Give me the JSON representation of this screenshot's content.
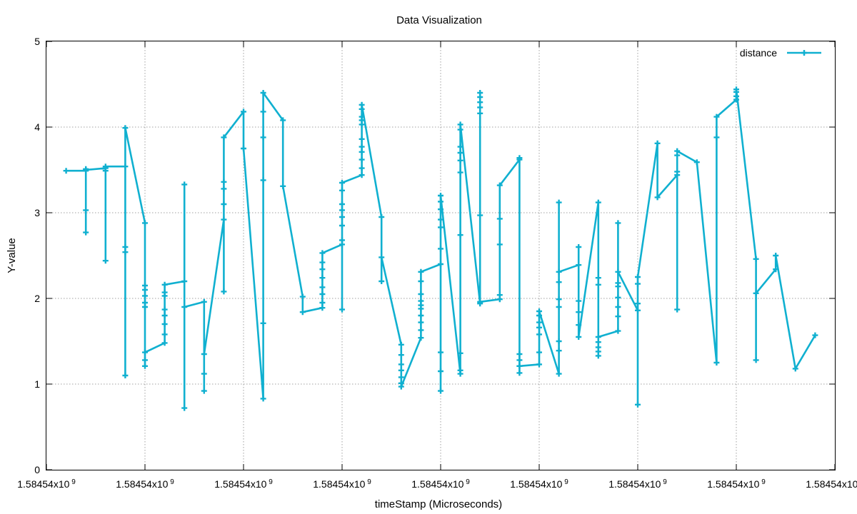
{
  "chart_data": {
    "type": "line",
    "title": "Data Visualization",
    "xlabel": "timeStamp (Microseconds)",
    "ylabel": "Y-value",
    "ylim": [
      0,
      5
    ],
    "xlim": [
      0,
      16
    ],
    "yticks": [
      "0",
      "1",
      "2",
      "3",
      "4",
      "5"
    ],
    "xtick_labels": [
      "1.58454x10 9",
      "1.58454x10 9",
      "1.58454x10 9",
      "1.58454x10 9",
      "1.58454x10 9",
      "1.58454x10 9",
      "1.58454x10 9",
      "1.58454x10 9",
      "1.58454x10 9"
    ],
    "grid": true,
    "legend_position": "top-right",
    "series": [
      {
        "name": "distance",
        "color": "#10b0d0",
        "marker": "plus",
        "points": [
          [
            0.4,
            3.49
          ],
          [
            0.8,
            3.49
          ],
          [
            0.8,
            3.51
          ],
          [
            0.8,
            3.03
          ],
          [
            0.8,
            2.77
          ],
          [
            0.8,
            3.5
          ],
          [
            1.2,
            3.52
          ],
          [
            1.2,
            3.49
          ],
          [
            1.2,
            2.44
          ],
          [
            1.2,
            3.54
          ],
          [
            1.6,
            3.54
          ],
          [
            1.6,
            2.6
          ],
          [
            1.6,
            2.54
          ],
          [
            1.6,
            1.1
          ],
          [
            1.6,
            3.99
          ],
          [
            2.0,
            2.88
          ],
          [
            2.0,
            2.15
          ],
          [
            2.0,
            2.1
          ],
          [
            2.0,
            2.03
          ],
          [
            2.0,
            1.95
          ],
          [
            2.0,
            1.9
          ],
          [
            2.0,
            1.28
          ],
          [
            2.0,
            1.21
          ],
          [
            2.0,
            1.37
          ],
          [
            2.4,
            1.48
          ],
          [
            2.4,
            1.58
          ],
          [
            2.4,
            1.7
          ],
          [
            2.4,
            1.8
          ],
          [
            2.4,
            1.87
          ],
          [
            2.4,
            2.03
          ],
          [
            2.4,
            2.07
          ],
          [
            2.4,
            2.16
          ],
          [
            2.8,
            2.2
          ],
          [
            2.8,
            0.72
          ],
          [
            2.8,
            3.33
          ],
          [
            2.8,
            1.9
          ],
          [
            3.2,
            1.96
          ],
          [
            3.2,
            0.92
          ],
          [
            3.2,
            1.12
          ],
          [
            3.2,
            1.35
          ],
          [
            3.6,
            2.92
          ],
          [
            3.6,
            2.08
          ],
          [
            3.6,
            3.1
          ],
          [
            3.6,
            3.28
          ],
          [
            3.6,
            3.36
          ],
          [
            3.6,
            3.88
          ],
          [
            4.0,
            4.18
          ],
          [
            4.0,
            3.75
          ],
          [
            4.4,
            0.83
          ],
          [
            4.4,
            1.71
          ],
          [
            4.4,
            3.38
          ],
          [
            4.4,
            3.88
          ],
          [
            4.4,
            4.18
          ],
          [
            4.4,
            4.4
          ],
          [
            4.8,
            4.08
          ],
          [
            4.8,
            3.31
          ],
          [
            5.2,
            2.02
          ],
          [
            5.2,
            1.84
          ],
          [
            5.6,
            1.89
          ],
          [
            5.6,
            1.95
          ],
          [
            5.6,
            2.05
          ],
          [
            5.6,
            2.13
          ],
          [
            5.6,
            2.24
          ],
          [
            5.6,
            2.34
          ],
          [
            5.6,
            2.42
          ],
          [
            5.6,
            2.53
          ],
          [
            6.0,
            2.63
          ],
          [
            6.0,
            1.87
          ],
          [
            6.0,
            2.68
          ],
          [
            6.0,
            2.85
          ],
          [
            6.0,
            2.95
          ],
          [
            6.0,
            3.03
          ],
          [
            6.0,
            3.1
          ],
          [
            6.0,
            3.26
          ],
          [
            6.0,
            3.35
          ],
          [
            6.4,
            3.44
          ],
          [
            6.4,
            3.52
          ],
          [
            6.4,
            3.62
          ],
          [
            6.4,
            3.71
          ],
          [
            6.4,
            3.77
          ],
          [
            6.4,
            3.86
          ],
          [
            6.4,
            4.03
          ],
          [
            6.4,
            4.08
          ],
          [
            6.4,
            4.12
          ],
          [
            6.4,
            4.21
          ],
          [
            6.4,
            4.26
          ],
          [
            6.8,
            2.95
          ],
          [
            6.8,
            2.2
          ],
          [
            6.8,
            2.48
          ],
          [
            7.2,
            1.46
          ],
          [
            7.2,
            1.34
          ],
          [
            7.2,
            1.23
          ],
          [
            7.2,
            1.16
          ],
          [
            7.2,
            1.08
          ],
          [
            7.2,
            1.01
          ],
          [
            7.2,
            0.97
          ],
          [
            7.6,
            1.54
          ],
          [
            7.6,
            1.63
          ],
          [
            7.6,
            1.72
          ],
          [
            7.6,
            1.8
          ],
          [
            7.6,
            1.88
          ],
          [
            7.6,
            1.92
          ],
          [
            7.6,
            1.97
          ],
          [
            7.6,
            2.05
          ],
          [
            7.6,
            2.2
          ],
          [
            7.6,
            2.31
          ],
          [
            8.0,
            2.4
          ],
          [
            8.0,
            0.92
          ],
          [
            8.0,
            1.15
          ],
          [
            8.0,
            1.37
          ],
          [
            8.0,
            2.58
          ],
          [
            8.0,
            2.83
          ],
          [
            8.0,
            2.92
          ],
          [
            8.0,
            3.04
          ],
          [
            8.0,
            3.13
          ],
          [
            8.0,
            3.2
          ],
          [
            8.4,
            1.12
          ],
          [
            8.4,
            1.16
          ],
          [
            8.4,
            1.36
          ],
          [
            8.4,
            2.74
          ],
          [
            8.4,
            3.47
          ],
          [
            8.4,
            3.61
          ],
          [
            8.4,
            3.7
          ],
          [
            8.4,
            3.77
          ],
          [
            8.4,
            3.97
          ],
          [
            8.4,
            4.03
          ],
          [
            8.8,
            1.94
          ],
          [
            8.8,
            2.97
          ],
          [
            8.8,
            4.16
          ],
          [
            8.8,
            4.23
          ],
          [
            8.8,
            4.29
          ],
          [
            8.8,
            4.35
          ],
          [
            8.8,
            4.4
          ],
          [
            8.8,
            1.96
          ],
          [
            9.2,
            1.99
          ],
          [
            9.2,
            2.04
          ],
          [
            9.2,
            2.63
          ],
          [
            9.2,
            2.93
          ],
          [
            9.2,
            3.32
          ],
          [
            9.6,
            3.62
          ],
          [
            9.6,
            3.64
          ],
          [
            9.6,
            1.35
          ],
          [
            9.6,
            1.28
          ],
          [
            9.6,
            1.21
          ],
          [
            9.6,
            1.13
          ],
          [
            9.6,
            1.21
          ],
          [
            10.0,
            1.23
          ],
          [
            10.0,
            1.37
          ],
          [
            10.0,
            1.58
          ],
          [
            10.0,
            1.66
          ],
          [
            10.0,
            1.72
          ],
          [
            10.0,
            1.8
          ],
          [
            10.0,
            1.85
          ],
          [
            10.4,
            1.12
          ],
          [
            10.4,
            1.39
          ],
          [
            10.4,
            1.5
          ],
          [
            10.4,
            1.9
          ],
          [
            10.4,
            1.99
          ],
          [
            10.4,
            2.19
          ],
          [
            10.4,
            3.12
          ],
          [
            10.4,
            2.31
          ],
          [
            10.8,
            2.39
          ],
          [
            10.8,
            2.6
          ],
          [
            10.8,
            1.97
          ],
          [
            10.8,
            1.84
          ],
          [
            10.8,
            1.69
          ],
          [
            10.8,
            1.55
          ],
          [
            11.2,
            3.12
          ],
          [
            11.2,
            2.24
          ],
          [
            11.2,
            2.16
          ],
          [
            11.2,
            1.49
          ],
          [
            11.2,
            1.43
          ],
          [
            11.2,
            1.38
          ],
          [
            11.2,
            1.33
          ],
          [
            11.2,
            1.55
          ],
          [
            11.6,
            1.62
          ],
          [
            11.6,
            1.79
          ],
          [
            11.6,
            1.9
          ],
          [
            11.6,
            2.01
          ],
          [
            11.6,
            2.14
          ],
          [
            11.6,
            2.18
          ],
          [
            11.6,
            2.88
          ],
          [
            11.6,
            2.31
          ],
          [
            12.0,
            1.86
          ],
          [
            12.0,
            0.76
          ],
          [
            12.0,
            1.94
          ],
          [
            12.0,
            2.17
          ],
          [
            12.0,
            2.25
          ],
          [
            12.4,
            3.81
          ],
          [
            12.4,
            3.18
          ],
          [
            12.8,
            3.44
          ],
          [
            12.8,
            3.48
          ],
          [
            12.8,
            1.87
          ],
          [
            12.8,
            3.67
          ],
          [
            12.8,
            3.72
          ],
          [
            13.2,
            3.59
          ],
          [
            13.6,
            1.25
          ],
          [
            13.6,
            3.88
          ],
          [
            13.6,
            4.12
          ],
          [
            14.0,
            4.32
          ],
          [
            14.0,
            4.36
          ],
          [
            14.0,
            4.41
          ],
          [
            14.0,
            4.44
          ],
          [
            14.4,
            2.46
          ],
          [
            14.4,
            1.28
          ],
          [
            14.4,
            2.06
          ],
          [
            14.8,
            2.34
          ],
          [
            14.8,
            2.5
          ],
          [
            15.2,
            1.18
          ],
          [
            15.6,
            1.57
          ]
        ]
      }
    ]
  }
}
